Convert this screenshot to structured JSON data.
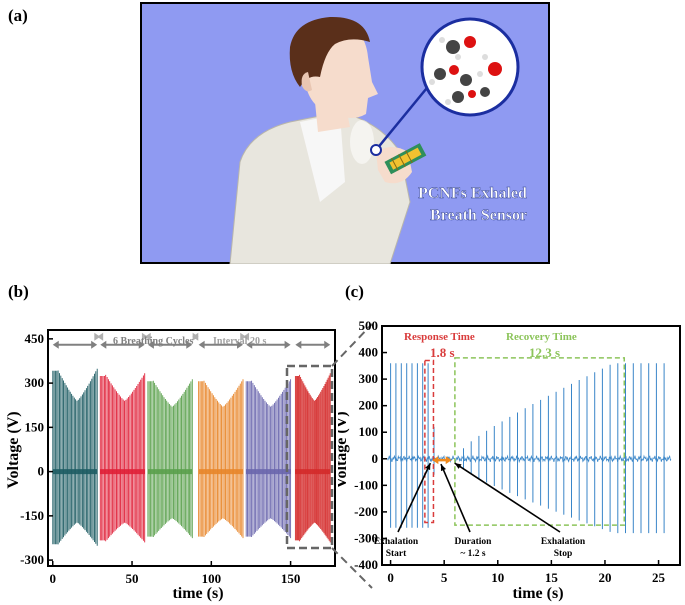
{
  "panels": {
    "a": "(a)",
    "b": "(b)",
    "c": "(c)"
  },
  "illustration": {
    "label_line1": "PCNFs Exhaled",
    "label_line2": "Breath Sensor"
  },
  "colors": {
    "background_blue": "#8f9af2",
    "teal": "#1d5c63",
    "red": "#e02038",
    "green": "#5aa04c",
    "orange": "#e8862a",
    "purple": "#6a66ad",
    "deep_red": "#d42a2a",
    "blue_signal": "#3a86c8",
    "annot_red": "#d93c3c",
    "annot_green": "#8cc45a",
    "arrow_orange": "#f08a1c",
    "bracket_gray": "#808080"
  },
  "chart_data": [
    {
      "type": "line",
      "panel": "b",
      "xlabel": "time (s)",
      "ylabel": "Voltage (V)",
      "xlim": [
        -3,
        178
      ],
      "ylim": [
        -320,
        480
      ],
      "xticks": [
        0,
        50,
        100,
        150
      ],
      "yticks": [
        -300,
        -150,
        0,
        150,
        300,
        450
      ],
      "annotations": {
        "cycles": "6 Breathing Cycles",
        "interval": "Interval 20 s"
      },
      "series": [
        {
          "color": "#1d5c63",
          "start": 0,
          "end": 28,
          "amp_max": 380,
          "amp_min": 240
        },
        {
          "color": "#e02038",
          "start": 30,
          "end": 58,
          "amp_max": 360,
          "amp_min": 240
        },
        {
          "color": "#5aa04c",
          "start": 60,
          "end": 88,
          "amp_max": 340,
          "amp_min": 220
        },
        {
          "color": "#e8862a",
          "start": 92,
          "end": 120,
          "amp_max": 340,
          "amp_min": 220
        },
        {
          "color": "#6a66ad",
          "start": 122,
          "end": 150,
          "amp_max": 340,
          "amp_min": 220
        },
        {
          "color": "#d42a2a",
          "start": 153,
          "end": 175,
          "amp_max": 360,
          "amp_min": 240
        }
      ]
    },
    {
      "type": "line",
      "panel": "c",
      "xlabel": "time (s)",
      "ylabel": "Voltage (V)",
      "xlim": [
        -0.8,
        27
      ],
      "ylim": [
        -400,
        500
      ],
      "xticks": [
        0,
        5,
        10,
        15,
        20,
        25
      ],
      "yticks": [
        -400,
        -300,
        -200,
        -100,
        0,
        100,
        200,
        300,
        400,
        500
      ],
      "annotations": {
        "response_title": "Response Time",
        "response_value": "1.8 s",
        "recovery_title": "Recovery Time",
        "recovery_value": "12.3 s",
        "exhalation_start": [
          "Exhalation",
          "Start"
        ],
        "duration": [
          "Duration",
          "~ 1.2 s"
        ],
        "exhalation_stop": [
          "Exhalation",
          "Stop"
        ]
      },
      "response_window": [
        3.2,
        4.0
      ],
      "recovery_window": [
        6.0,
        21.8
      ],
      "exhalation_start_time": 3.9,
      "exhalation_stop_time": 5.7
    }
  ]
}
